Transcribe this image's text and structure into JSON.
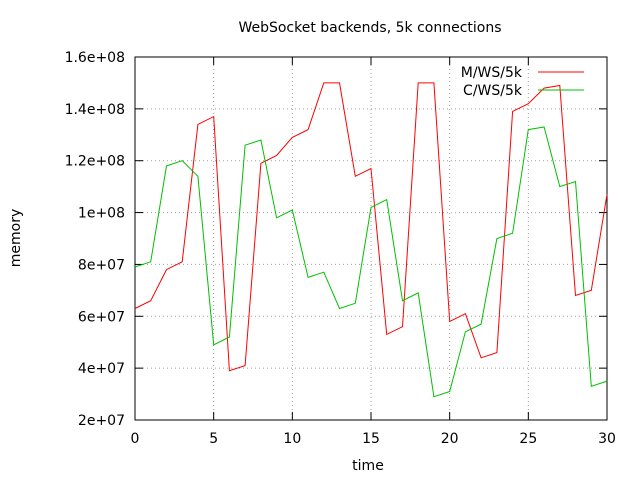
{
  "chart_data": {
    "type": "line",
    "title": "WebSocket backends, 5k connections",
    "xlabel": "time",
    "ylabel": "memory",
    "xlim": [
      0,
      30
    ],
    "ylim": [
      20000000,
      160000000
    ],
    "x_ticks": [
      0,
      5,
      10,
      15,
      20,
      25,
      30
    ],
    "y_ticks": [
      20000000,
      40000000,
      60000000,
      80000000,
      100000000,
      120000000,
      140000000,
      160000000
    ],
    "x_tick_labels": [
      "0",
      "5",
      "10",
      "15",
      "20",
      "25",
      "30"
    ],
    "y_tick_labels": [
      "2e+07",
      "4e+07",
      "6e+07",
      "8e+07",
      "1e+08",
      "1.2e+08",
      "1.4e+08",
      "1.6e+08"
    ],
    "grid": true,
    "legend_position": "top-right",
    "x": [
      0,
      1,
      2,
      3,
      4,
      5,
      6,
      7,
      8,
      9,
      10,
      11,
      12,
      13,
      14,
      15,
      16,
      17,
      18,
      19,
      20,
      21,
      22,
      23,
      24,
      25,
      26,
      27,
      28,
      29,
      30
    ],
    "series": [
      {
        "name": "M/WS/5k",
        "color": "#ff0000",
        "values": [
          63000000,
          66000000,
          78000000,
          81000000,
          134000000,
          137000000,
          39000000,
          41000000,
          119000000,
          122000000,
          129000000,
          132000000,
          150000000,
          150000000,
          114000000,
          117000000,
          53000000,
          56000000,
          150000000,
          150000000,
          58000000,
          61000000,
          44000000,
          46000000,
          139000000,
          142000000,
          148000000,
          149000000,
          68000000,
          70000000,
          107000000
        ]
      },
      {
        "name": "C/WS/5k",
        "color": "#00c000",
        "values": [
          79000000,
          81000000,
          118000000,
          120000000,
          114000000,
          49000000,
          52000000,
          126000000,
          128000000,
          98000000,
          101000000,
          75000000,
          77000000,
          63000000,
          65000000,
          102000000,
          105000000,
          66000000,
          69000000,
          29000000,
          31000000,
          54000000,
          57000000,
          90000000,
          92000000,
          132000000,
          133000000,
          110000000,
          112000000,
          33000000,
          35000000
        ]
      }
    ]
  }
}
